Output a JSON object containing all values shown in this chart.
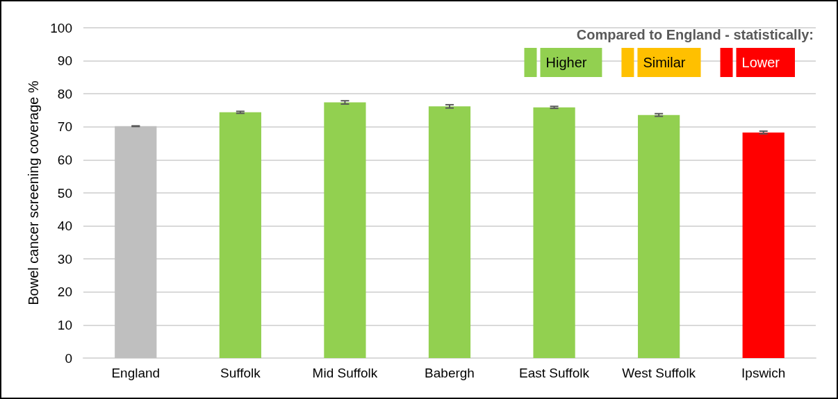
{
  "chart_data": {
    "type": "bar",
    "ylabel": "Bowel cancer screening coverage %",
    "legend_title": "Compared to England - statistically:",
    "categories": [
      "England",
      "Suffolk",
      "Mid Suffolk",
      "Babergh",
      "East Suffolk",
      "West Suffolk",
      "Ipswich"
    ],
    "stacked": true,
    "series": [
      {
        "color": "#bfbfbf",
        "values": [
          70.2,
          null,
          null,
          null,
          null,
          null,
          null
        ],
        "errors": [
          0.1,
          null,
          null,
          null,
          null,
          null,
          null
        ]
      },
      {
        "name": "Higher",
        "color": "#92d050",
        "values": [
          null,
          74.4,
          77.4,
          76.2,
          75.9,
          73.6,
          null
        ],
        "errors": [
          null,
          0.3,
          0.5,
          0.5,
          0.3,
          0.4,
          null
        ]
      },
      {
        "name": "Similar",
        "color": "#ffc000",
        "values": [
          null,
          null,
          null,
          null,
          null,
          null,
          null
        ]
      },
      {
        "name": "Lower",
        "color": "#ff0000",
        "values": [
          null,
          null,
          null,
          null,
          null,
          null,
          68.3
        ],
        "errors": [
          null,
          null,
          null,
          null,
          null,
          null,
          0.4
        ]
      }
    ],
    "ylim": [
      0,
      100
    ],
    "yticks": [
      0,
      10,
      20,
      30,
      40,
      50,
      60,
      70,
      80,
      90,
      100
    ],
    "grid": true,
    "legend": "top right"
  }
}
